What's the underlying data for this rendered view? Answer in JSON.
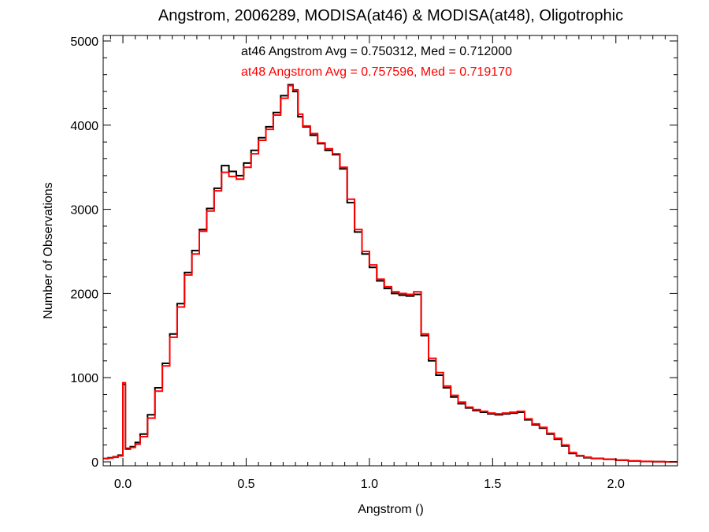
{
  "chart_data": {
    "type": "line",
    "style": "step-histogram",
    "title": "Angstrom, 2006289, MODISA(at46) & MODISA(at48), Oligotrophic",
    "xlabel": "Angstrom ()",
    "ylabel": "Number of Observations",
    "xlim": [
      -0.08,
      2.25
    ],
    "ylim": [
      0,
      5000
    ],
    "xticks": [
      0.0,
      0.5,
      1.0,
      1.5,
      2.0
    ],
    "xtick_labels": [
      "0.0",
      "0.5",
      "1.0",
      "1.5",
      "2.0"
    ],
    "yticks": [
      0,
      1000,
      2000,
      3000,
      4000,
      5000
    ],
    "ytick_labels": [
      "0",
      "1000",
      "2000",
      "3000",
      "4000",
      "5000"
    ],
    "grid": false,
    "annotations": [
      {
        "text": "at46 Angstrom Avg = 0.750312, Med = 0.712000",
        "color": "#000000"
      },
      {
        "text": "at48 Angstrom Avg = 0.757596, Med = 0.719170",
        "color": "#ff0000"
      }
    ],
    "series": [
      {
        "color": "#000000",
        "x": [
          -0.08,
          -0.06,
          -0.04,
          -0.02,
          0.0,
          0.01,
          0.03,
          0.05,
          0.07,
          0.1,
          0.13,
          0.16,
          0.19,
          0.22,
          0.25,
          0.28,
          0.31,
          0.34,
          0.37,
          0.4,
          0.43,
          0.46,
          0.49,
          0.52,
          0.55,
          0.58,
          0.61,
          0.64,
          0.67,
          0.69,
          0.71,
          0.73,
          0.76,
          0.79,
          0.82,
          0.85,
          0.88,
          0.91,
          0.94,
          0.97,
          1.0,
          1.03,
          1.06,
          1.09,
          1.12,
          1.15,
          1.18,
          1.21,
          1.24,
          1.27,
          1.3,
          1.33,
          1.36,
          1.39,
          1.42,
          1.45,
          1.48,
          1.51,
          1.54,
          1.57,
          1.6,
          1.63,
          1.66,
          1.69,
          1.72,
          1.75,
          1.78,
          1.81,
          1.84,
          1.87,
          1.9,
          1.95,
          2.0,
          2.05,
          2.1,
          2.15,
          2.2,
          2.25
        ],
        "y": [
          40,
          50,
          60,
          80,
          920,
          160,
          180,
          230,
          330,
          560,
          880,
          1170,
          1520,
          1880,
          2250,
          2510,
          2760,
          3010,
          3250,
          3520,
          3450,
          3400,
          3550,
          3700,
          3850,
          3980,
          4150,
          4350,
          4480,
          4400,
          4100,
          3980,
          3880,
          3780,
          3700,
          3650,
          3480,
          3080,
          2730,
          2470,
          2310,
          2150,
          2060,
          2000,
          1980,
          1970,
          1990,
          1500,
          1200,
          1030,
          880,
          770,
          690,
          640,
          610,
          590,
          570,
          560,
          570,
          580,
          590,
          500,
          440,
          400,
          330,
          270,
          190,
          100,
          70,
          50,
          40,
          30,
          20,
          10,
          5,
          2,
          0,
          0
        ]
      },
      {
        "color": "#ff0000",
        "x": [
          -0.08,
          -0.06,
          -0.04,
          -0.02,
          0.0,
          0.01,
          0.03,
          0.05,
          0.07,
          0.1,
          0.13,
          0.16,
          0.19,
          0.22,
          0.25,
          0.28,
          0.31,
          0.34,
          0.37,
          0.4,
          0.43,
          0.46,
          0.49,
          0.52,
          0.55,
          0.58,
          0.61,
          0.64,
          0.67,
          0.69,
          0.71,
          0.73,
          0.76,
          0.79,
          0.82,
          0.85,
          0.88,
          0.91,
          0.94,
          0.97,
          1.0,
          1.03,
          1.06,
          1.09,
          1.12,
          1.15,
          1.18,
          1.21,
          1.24,
          1.27,
          1.3,
          1.33,
          1.36,
          1.39,
          1.42,
          1.45,
          1.48,
          1.51,
          1.54,
          1.57,
          1.6,
          1.63,
          1.66,
          1.69,
          1.72,
          1.75,
          1.78,
          1.81,
          1.84,
          1.87,
          1.9,
          1.95,
          2.0,
          2.05,
          2.1,
          2.15,
          2.2,
          2.25
        ],
        "y": [
          40,
          45,
          55,
          70,
          940,
          150,
          170,
          210,
          300,
          520,
          840,
          1140,
          1480,
          1840,
          2220,
          2470,
          2740,
          2980,
          3220,
          3440,
          3390,
          3360,
          3500,
          3660,
          3820,
          3950,
          4120,
          4320,
          4470,
          4420,
          4130,
          3990,
          3900,
          3790,
          3720,
          3660,
          3500,
          3120,
          2760,
          2500,
          2340,
          2170,
          2080,
          2020,
          2000,
          1990,
          2020,
          1520,
          1230,
          1060,
          900,
          790,
          710,
          650,
          620,
          600,
          580,
          570,
          580,
          590,
          600,
          510,
          450,
          410,
          340,
          280,
          200,
          110,
          75,
          55,
          42,
          32,
          22,
          12,
          6,
          2,
          0,
          0
        ]
      }
    ]
  }
}
